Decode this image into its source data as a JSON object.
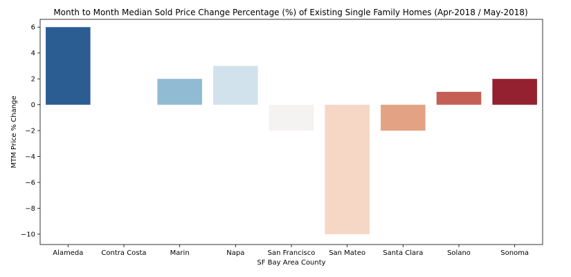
{
  "chart_data": {
    "type": "bar",
    "title": "Month to Month Median Sold Price Change Percentage (%) of Existing Single Family Homes (Apr-2018 / May-2018)",
    "xlabel": "SF Bay Area County",
    "ylabel": "MTM Price % Change",
    "categories": [
      "Alameda",
      "Contra Costa",
      "Marin",
      "Napa",
      "San Francisco",
      "San Mateo",
      "Santa Clara",
      "Solano",
      "Sonoma"
    ],
    "values": [
      6,
      0,
      2,
      3,
      -2,
      -10,
      -2,
      1,
      2
    ],
    "colors": [
      "#2b5d93",
      "#a3c6dd",
      "#91bad3",
      "#d1e2ec",
      "#f5f2f2",
      "#f6d6c5",
      "#e2a283",
      "#c45f55",
      "#93212f"
    ],
    "ylim": [
      -10.8,
      6.6
    ],
    "yticks": [
      -10,
      -8,
      -6,
      -4,
      -2,
      0,
      2,
      4,
      6
    ],
    "ytick_labels": [
      "−10",
      "−8",
      "−6",
      "−4",
      "−2",
      "0",
      "2",
      "4",
      "6"
    ],
    "grid": false,
    "legend": "none"
  }
}
